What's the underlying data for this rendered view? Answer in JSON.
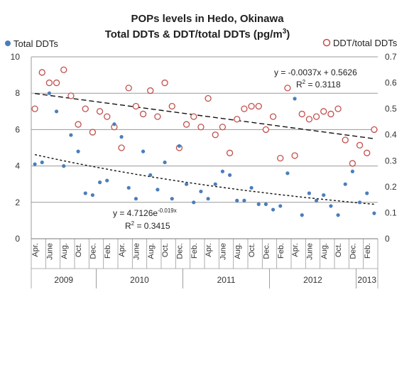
{
  "chart_data": {
    "type": "scatter",
    "title_line1": "POPs levels in Hedo, Okinawa",
    "title_line2": "Total DDTs & DDT/total DDTs (pg/m",
    "title_sup": "3",
    "title_end": ")",
    "left_axis": {
      "min": 0,
      "max": 10,
      "ticks": [
        "0",
        "2",
        "4",
        "6",
        "8",
        "10"
      ]
    },
    "right_axis": {
      "min": 0,
      "max": 0.7,
      "ticks": [
        "0",
        "0.1",
        "0.2",
        "0.3",
        "0.4",
        "0.5",
        "0.6",
        "0.7"
      ]
    },
    "month_labels": [
      "Apr.",
      "June",
      "Aug.",
      "Oct.",
      "Dec.",
      "Feb.",
      "Apr.",
      "June",
      "Aug.",
      "Oct.",
      "Dec.",
      "Feb.",
      "Apr.",
      "June",
      "Aug.",
      "Oct.",
      "Dec.",
      "Feb.",
      "Apr.",
      "June",
      "Aug.",
      "Oct.",
      "Dec.",
      "Feb."
    ],
    "years": [
      {
        "label": "2009",
        "start": 0,
        "end": 9
      },
      {
        "label": "2010",
        "start": 9,
        "end": 21
      },
      {
        "label": "2011",
        "start": 21,
        "end": 33
      },
      {
        "label": "2012",
        "start": 33,
        "end": 45
      },
      {
        "label": "2013",
        "start": 45,
        "end": 48
      }
    ],
    "series": [
      {
        "name": "Total DDTs",
        "axis": "left",
        "color": "#4a7ebb",
        "x": [
          0,
          1,
          2,
          3,
          4,
          5,
          6,
          7,
          8,
          9,
          10,
          11,
          12,
          13,
          14,
          15,
          16,
          17,
          18,
          19,
          20,
          21,
          22,
          23,
          24,
          25,
          26,
          27,
          28,
          29,
          30,
          31,
          32,
          33,
          34,
          35,
          36,
          37,
          38,
          39,
          40,
          41,
          42,
          43,
          44,
          45,
          46,
          47
        ],
        "values": [
          4.1,
          4.2,
          8.0,
          7.0,
          4.0,
          5.7,
          4.8,
          2.5,
          2.4,
          3.1,
          3.2,
          6.3,
          5.6,
          2.8,
          2.2,
          4.8,
          3.5,
          2.7,
          4.2,
          2.2,
          5.1,
          3.0,
          2.0,
          2.6,
          2.2,
          3.0,
          3.7,
          3.5,
          2.1,
          2.1,
          2.8,
          1.9,
          1.9,
          1.6,
          1.8,
          3.6,
          7.7,
          1.3,
          2.5,
          2.1,
          2.4,
          1.8,
          1.3,
          3.0,
          3.7,
          2.0,
          2.5,
          1.4
        ]
      },
      {
        "name": "DDT/total DDTs",
        "axis": "right",
        "color": "#c0504d",
        "x": [
          0,
          1,
          2,
          3,
          4,
          5,
          6,
          7,
          8,
          9,
          10,
          11,
          12,
          13,
          14,
          15,
          16,
          17,
          18,
          19,
          20,
          21,
          22,
          23,
          24,
          25,
          26,
          27,
          28,
          29,
          30,
          31,
          32,
          33,
          34,
          35,
          36,
          37,
          38,
          39,
          40,
          41,
          42,
          43,
          44,
          45,
          46,
          47
        ],
        "values": [
          0.5,
          0.64,
          0.6,
          0.6,
          0.65,
          0.55,
          0.44,
          0.5,
          0.41,
          0.49,
          0.47,
          0.43,
          0.35,
          0.58,
          0.51,
          0.48,
          0.57,
          0.47,
          0.6,
          0.51,
          0.35,
          0.44,
          0.47,
          0.43,
          0.54,
          0.4,
          0.43,
          0.33,
          0.46,
          0.5,
          0.51,
          0.51,
          0.42,
          0.47,
          0.31,
          0.58,
          0.32,
          0.48,
          0.46,
          0.47,
          0.49,
          0.48,
          0.5,
          0.38,
          0.29,
          0.36,
          0.33,
          0.42
        ]
      }
    ],
    "trendlines": [
      {
        "name": "linear",
        "axis": "right",
        "slope": -0.0037,
        "intercept": 0.5626,
        "eq": "y = -0.0037x + 0.5626",
        "r2_prefix": "R",
        "r2_sup": "2",
        "r2_value": " = 0.3118"
      },
      {
        "name": "exponential",
        "axis": "left",
        "a": 4.7126,
        "b": -0.019,
        "eq_prefix": "y = 4.7126e",
        "eq_sup": "-0.019x",
        "r2_prefix": "R",
        "r2_sup": "2",
        "r2_value": " = 0.3415"
      }
    ],
    "grid": true,
    "legend": [
      {
        "label": "Total DDTs",
        "position": "top-left",
        "marker": "filled-circle",
        "color": "#4a7ebb"
      },
      {
        "label": "DDT/total DDTs",
        "position": "top-right",
        "marker": "hollow-circle",
        "color": "#c0504d"
      }
    ]
  }
}
